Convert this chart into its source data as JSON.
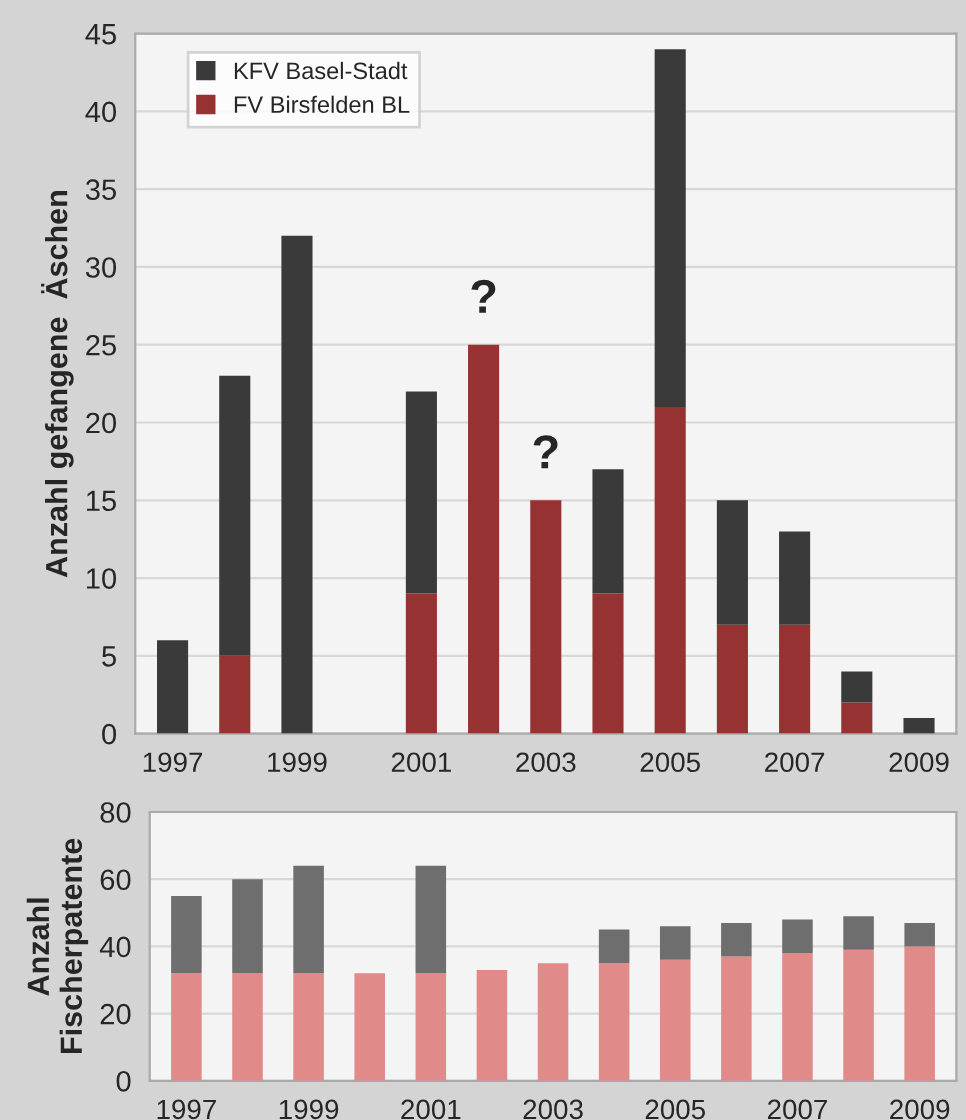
{
  "chart_data": [
    {
      "type": "bar",
      "stacked": true,
      "ylabel": "Anzahl gefangene  Äschen",
      "categories": [
        "1997",
        null,
        "1999",
        null,
        "2001",
        null,
        "2003",
        null,
        "2005",
        null,
        "2007",
        null,
        "2009"
      ],
      "series": [
        {
          "name": "FV Birsfelden BL",
          "color": "#963232",
          "values": [
            0,
            5,
            0,
            0,
            9,
            25,
            15,
            9,
            21,
            7,
            7,
            2,
            0
          ]
        },
        {
          "name": "KFV Basel-Stadt",
          "color": "#3a3a3a",
          "values": [
            6,
            18,
            32,
            0,
            13,
            0,
            0,
            8,
            23,
            8,
            6,
            2,
            1
          ]
        }
      ],
      "ylim": [
        0,
        45
      ],
      "yticks": [
        0,
        5,
        10,
        15,
        20,
        25,
        30,
        35,
        40,
        45
      ],
      "grid": "y",
      "legend": "top left",
      "annotations": [
        {
          "text": "?",
          "y": 25
        },
        {
          "text": "?",
          "x": "2003",
          "y": 15
        }
      ]
    },
    {
      "type": "bar",
      "stacked": true,
      "ylabel": "Anzahl\nFischerpatente",
      "categories": [
        "1997",
        null,
        "1999",
        null,
        "2001",
        null,
        "2003",
        null,
        "2005",
        null,
        "2007",
        null,
        "2009"
      ],
      "series": [
        {
          "color": "#e08a8a",
          "values": [
            32,
            32,
            32,
            32,
            32,
            33,
            35,
            35,
            36,
            37,
            38,
            39,
            40
          ]
        },
        {
          "color": "#6e6e6e",
          "values": [
            23,
            28,
            32,
            0,
            32,
            0,
            0,
            10,
            10,
            10,
            10,
            10,
            7
          ]
        }
      ],
      "ylim": [
        0,
        80
      ],
      "yticks": [
        0,
        20,
        40,
        60,
        80
      ],
      "grid": "y"
    }
  ]
}
